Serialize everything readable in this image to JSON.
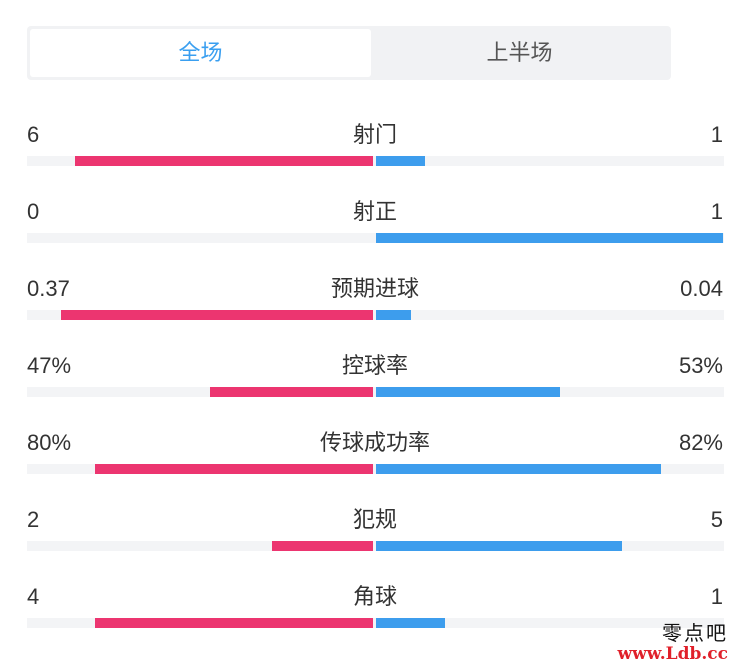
{
  "tabs": [
    {
      "label": "全场",
      "active": true
    },
    {
      "label": "上半场",
      "active": false
    }
  ],
  "colors": {
    "home": "#ec3570",
    "away": "#3d9ded",
    "active_tab": "#3a9ff0",
    "track": "#f3f4f6"
  },
  "stats": [
    {
      "name": "射门",
      "home": "6",
      "away": "1",
      "home_share": 0.86,
      "away_share": 0.14
    },
    {
      "name": "射正",
      "home": "0",
      "away": "1",
      "home_share": 0.0,
      "away_share": 1.0
    },
    {
      "name": "预期进球",
      "home": "0.37",
      "away": "0.04",
      "home_share": 0.9,
      "away_share": 0.1
    },
    {
      "name": "控球率",
      "home": "47%",
      "away": "53%",
      "home_share": 0.47,
      "away_share": 0.53
    },
    {
      "name": "传球成功率",
      "home": "80%",
      "away": "82%",
      "home_share": 0.8,
      "away_share": 0.82
    },
    {
      "name": "犯规",
      "home": "2",
      "away": "5",
      "home_share": 0.29,
      "away_share": 0.71
    },
    {
      "name": "角球",
      "home": "4",
      "away": "1",
      "home_share": 0.8,
      "away_share": 0.2
    }
  ],
  "watermark": {
    "text": "零点吧",
    "url": "www.Ldb.cc"
  }
}
